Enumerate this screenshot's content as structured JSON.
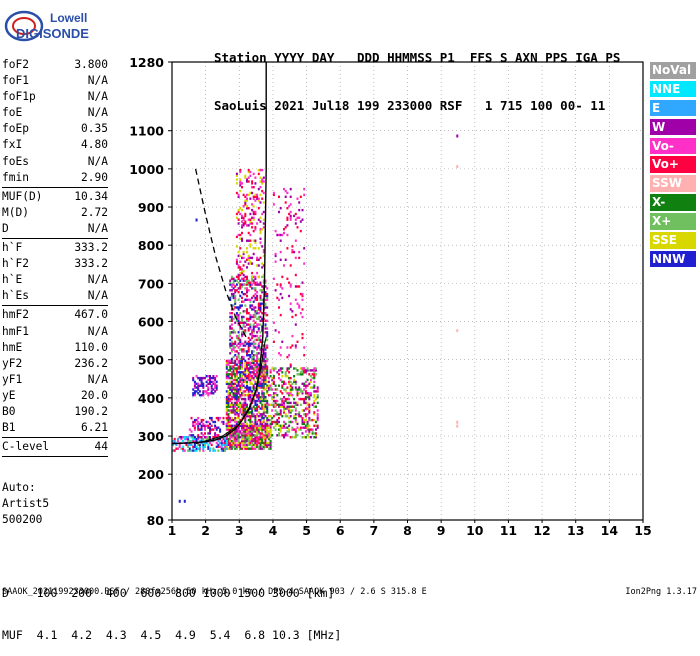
{
  "logo": {
    "line1": "Lowell",
    "line2": "DIGISONDE"
  },
  "header": {
    "line1": "Station YYYY DAY   DDD HHMMSS P1  FFS S AXN PPS IGA PS",
    "line2": "SaoLuis 2021 Jul18 199 233000 RSF   1 715 100 00- 11"
  },
  "params": [
    {
      "name": "foF2",
      "value": "3.800"
    },
    {
      "name": "foF1",
      "value": "N/A"
    },
    {
      "name": "foF1p",
      "value": "N/A"
    },
    {
      "name": "foE",
      "value": "N/A"
    },
    {
      "name": "foEp",
      "value": "0.35"
    },
    {
      "name": "fxI",
      "value": "4.80"
    },
    {
      "name": "foEs",
      "value": "N/A"
    },
    {
      "name": "fmin",
      "value": "2.90",
      "sep": true
    },
    {
      "name": "MUF(D)",
      "value": "10.34"
    },
    {
      "name": "M(D)",
      "value": "2.72"
    },
    {
      "name": "D",
      "value": "N/A",
      "sep": true
    },
    {
      "name": "h`F",
      "value": "333.2"
    },
    {
      "name": "h`F2",
      "value": "333.2"
    },
    {
      "name": "h`E",
      "value": "N/A"
    },
    {
      "name": "h`Es",
      "value": "N/A",
      "sep": true
    },
    {
      "name": "hmF2",
      "value": "467.0"
    },
    {
      "name": "hmF1",
      "value": "N/A"
    },
    {
      "name": "hmE",
      "value": "110.0"
    },
    {
      "name": "yF2",
      "value": "236.2"
    },
    {
      "name": "yF1",
      "value": "N/A"
    },
    {
      "name": "yE",
      "value": "20.0"
    },
    {
      "name": "B0",
      "value": "190.2"
    },
    {
      "name": "B1",
      "value": "6.21",
      "sep": true
    },
    {
      "name": "C-level",
      "value": "44",
      "sep": true
    }
  ],
  "auto": {
    "line1": "Auto:",
    "line2": "Artist5",
    "line3": "500200"
  },
  "legend": [
    {
      "label": "NoVal",
      "color": "#a0a0a0"
    },
    {
      "label": "NNE",
      "color": "#00e8ff"
    },
    {
      "label": "E",
      "color": "#30a8ff"
    },
    {
      "label": "W",
      "color": "#a000a8"
    },
    {
      "label": "Vo-",
      "color": "#ff30c8"
    },
    {
      "label": "Vo+",
      "color": "#ff0040"
    },
    {
      "label": "SSW",
      "color": "#ffb0b0"
    },
    {
      "label": "X-",
      "color": "#108010"
    },
    {
      "label": "X+",
      "color": "#70c060"
    },
    {
      "label": "SSE",
      "color": "#d8d800"
    },
    {
      "label": "NNW",
      "color": "#2020d0"
    }
  ],
  "dtable": {
    "line1": "D    100  200  400  600  800 1000 1500 3000 [km]",
    "line2": "MUF  4.1  4.2  4.3  4.5  4.9  5.4  6.8 10.3 [MHz]"
  },
  "footer": "SAAOK_2021199233000.RSF / 280fx256h 50 kHz 5.0 km / DPS-4 SAAOK 903 / 2.6 S 315.8 E",
  "version": "Ion2Png 1.3.17",
  "chart_data": {
    "type": "scatter",
    "title": "",
    "xlabel": "",
    "ylabel": "",
    "xlim": [
      1,
      15
    ],
    "ylim": [
      80,
      1280
    ],
    "x_ticks": [
      1,
      2,
      3,
      4,
      5,
      6,
      7,
      8,
      9,
      10,
      11,
      12,
      13,
      14,
      15
    ],
    "y_ticks": [
      80,
      200,
      300,
      400,
      500,
      600,
      700,
      800,
      900,
      1000,
      1100,
      1280
    ],
    "ordinary_trace": {
      "name": "",
      "x": [
        1.0,
        1.5,
        2.0,
        2.3,
        2.6,
        2.9,
        3.1,
        3.3,
        3.5,
        3.6,
        3.7,
        3.75,
        3.8,
        3.8
      ],
      "y": [
        280,
        282,
        285,
        290,
        300,
        320,
        345,
        375,
        420,
        470,
        560,
        700,
        1000,
        1280
      ]
    },
    "profile_line": {
      "x": [
        1.7,
        2.5,
        3.0,
        3.3,
        3.5,
        3.65,
        3.75,
        3.8
      ],
      "y": [
        280,
        300,
        330,
        370,
        420,
        480,
        540,
        560
      ]
    },
    "dashed_trace": {
      "x": [
        1.7,
        2.0,
        2.3,
        2.6,
        2.9,
        3.2
      ],
      "y": [
        1000,
        880,
        770,
        680,
        610,
        560
      ]
    },
    "echo_clusters": [
      {
        "x": [
          2.6,
          3.9
        ],
        "y": [
          270,
          330
        ],
        "density": 0.85,
        "colors": [
          "#ff30c8",
          "#ff0040",
          "#a000a8",
          "#108010",
          "#70c060",
          "#d8d800"
        ]
      },
      {
        "x": [
          2.6,
          3.8
        ],
        "y": [
          330,
          500
        ],
        "density": 0.7,
        "colors": [
          "#ff30c8",
          "#ff0040",
          "#a000a8",
          "#108010",
          "#d8d800",
          "#2020d0"
        ]
      },
      {
        "x": [
          2.7,
          3.8
        ],
        "y": [
          500,
          720
        ],
        "density": 0.45,
        "colors": [
          "#a000a8",
          "#ff30c8",
          "#ff0040",
          "#2020d0",
          "#70c060"
        ]
      },
      {
        "x": [
          2.9,
          3.7
        ],
        "y": [
          720,
          1000
        ],
        "density": 0.2,
        "colors": [
          "#a000a8",
          "#ff30c8",
          "#ff0040",
          "#d8d800"
        ]
      },
      {
        "x": [
          3.8,
          5.3
        ],
        "y": [
          300,
          480
        ],
        "density": 0.35,
        "colors": [
          "#ff0040",
          "#108010",
          "#70c060",
          "#d8d800",
          "#ff30c8",
          "#a000a8"
        ]
      },
      {
        "x": [
          1.0,
          2.6
        ],
        "y": [
          265,
          300
        ],
        "density": 0.55,
        "colors": [
          "#2020d0",
          "#30a8ff",
          "#00e8ff",
          "#ff0040",
          "#ff30c8",
          "#70c060"
        ]
      },
      {
        "x": [
          1.6,
          2.3
        ],
        "y": [
          410,
          460
        ],
        "density": 0.5,
        "colors": [
          "#2020d0",
          "#a000a8",
          "#ff30c8"
        ]
      },
      {
        "x": [
          1.5,
          2.6
        ],
        "y": [
          300,
          350
        ],
        "density": 0.35,
        "colors": [
          "#ff30c8",
          "#ff0040",
          "#a000a8",
          "#2020d0"
        ]
      },
      {
        "x": [
          4.0,
          4.9
        ],
        "y": [
          480,
          950
        ],
        "density": 0.06,
        "colors": [
          "#ff0040",
          "#a000a8",
          "#ff30c8"
        ]
      }
    ],
    "isolated_points": [
      {
        "x": 9.45,
        "y": 1090,
        "color": "#a000a8"
      },
      {
        "x": 9.45,
        "y": 1010,
        "color": "#ffb0b0"
      },
      {
        "x": 9.45,
        "y": 580,
        "color": "#ffb0b0"
      },
      {
        "x": 9.45,
        "y": 340,
        "color": "#ffb0b0"
      },
      {
        "x": 9.45,
        "y": 330,
        "color": "#ffb0b0"
      },
      {
        "x": 1.2,
        "y": 133,
        "color": "#2020d0"
      },
      {
        "x": 1.35,
        "y": 133,
        "color": "#2020d0"
      },
      {
        "x": 1.7,
        "y": 870,
        "color": "#2020d0"
      }
    ]
  }
}
